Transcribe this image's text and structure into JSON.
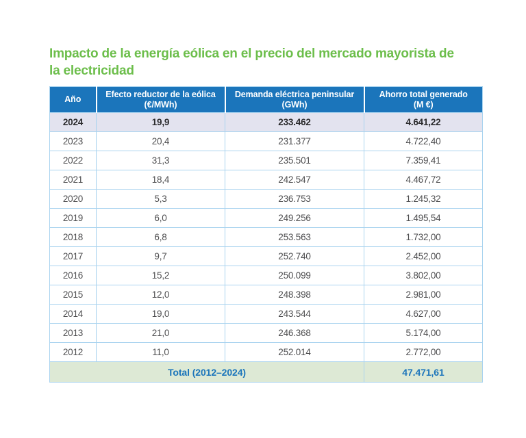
{
  "colors": {
    "title_green": "#6CBE4B",
    "header_blue": "#1B75BB",
    "border_blue": "#A9D3EF",
    "highlight_row_bg": "#E3E3EF",
    "total_row_bg": "#DDE9D5",
    "body_text": "#4D4D4F"
  },
  "title": {
    "line1": "Impacto de la energía eólica en el precio del mercado mayorista de",
    "line2": "la electricidad"
  },
  "table": {
    "columns": [
      {
        "line1": "Año",
        "line2": ""
      },
      {
        "line1": "Efecto reductor de la eólica",
        "line2": "(€/MWh)"
      },
      {
        "line1": "Demanda eléctrica peninsular",
        "line2": "(GWh)"
      },
      {
        "line1": "Ahorro total generado",
        "line2": "(M €)"
      }
    ],
    "rows": [
      {
        "year": "2024",
        "effect": "19,9",
        "demand": "233.462",
        "savings": "4.641,22",
        "highlight": true
      },
      {
        "year": "2023",
        "effect": "20,4",
        "demand": "231.377",
        "savings": "4.722,40",
        "highlight": false
      },
      {
        "year": "2022",
        "effect": "31,3",
        "demand": "235.501",
        "savings": "7.359,41",
        "highlight": false
      },
      {
        "year": "2021",
        "effect": "18,4",
        "demand": "242.547",
        "savings": "4.467,72",
        "highlight": false
      },
      {
        "year": "2020",
        "effect": "5,3",
        "demand": "236.753",
        "savings": "1.245,32",
        "highlight": false
      },
      {
        "year": "2019",
        "effect": "6,0",
        "demand": "249.256",
        "savings": "1.495,54",
        "highlight": false
      },
      {
        "year": "2018",
        "effect": "6,8",
        "demand": "253.563",
        "savings": "1.732,00",
        "highlight": false
      },
      {
        "year": "2017",
        "effect": "9,7",
        "demand": "252.740",
        "savings": "2.452,00",
        "highlight": false
      },
      {
        "year": "2016",
        "effect": "15,2",
        "demand": "250.099",
        "savings": "3.802,00",
        "highlight": false
      },
      {
        "year": "2015",
        "effect": "12,0",
        "demand": "248.398",
        "savings": "2.981,00",
        "highlight": false
      },
      {
        "year": "2014",
        "effect": "19,0",
        "demand": "243.544",
        "savings": "4.627,00",
        "highlight": false
      },
      {
        "year": "2013",
        "effect": "21,0",
        "demand": "246.368",
        "savings": "5.174,00",
        "highlight": false
      },
      {
        "year": "2012",
        "effect": "11,0",
        "demand": "252.014",
        "savings": "2.772,00",
        "highlight": false
      }
    ],
    "total": {
      "label": "Total (2012–2024)",
      "value": "47.471,61"
    }
  },
  "chart_data": {
    "type": "table",
    "title": "Impacto de la energía eólica en el precio del mercado mayorista de la electricidad",
    "columns": [
      "Año",
      "Efecto reductor de la eólica (€/MWh)",
      "Demanda eléctrica peninsular (GWh)",
      "Ahorro total generado (M €)"
    ],
    "rows": [
      [
        2024,
        19.9,
        233462,
        4641.22
      ],
      [
        2023,
        20.4,
        231377,
        4722.4
      ],
      [
        2022,
        31.3,
        235501,
        7359.41
      ],
      [
        2021,
        18.4,
        242547,
        4467.72
      ],
      [
        2020,
        5.3,
        236753,
        1245.32
      ],
      [
        2019,
        6.0,
        249256,
        1495.54
      ],
      [
        2018,
        6.8,
        253563,
        1732.0
      ],
      [
        2017,
        9.7,
        252740,
        2452.0
      ],
      [
        2016,
        15.2,
        250099,
        3802.0
      ],
      [
        2015,
        12.0,
        248398,
        2981.0
      ],
      [
        2014,
        19.0,
        243544,
        4627.0
      ],
      [
        2013,
        21.0,
        246368,
        5174.0
      ],
      [
        2012,
        11.0,
        252014,
        2772.0
      ]
    ],
    "highlighted_row_year": 2024,
    "total_row": {
      "label": "Total (2012–2024)",
      "ahorro_total_generado_M_eur": 47471.61
    }
  }
}
